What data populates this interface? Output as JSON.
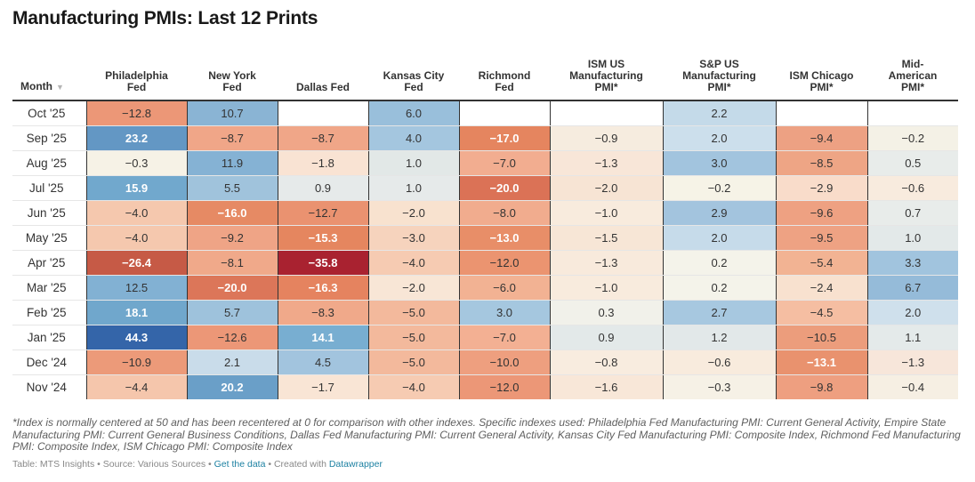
{
  "title": "Manufacturing PMIs: Last 12 Prints",
  "table": {
    "month_header": "Month",
    "sort_icon": "sort-desc-triangle",
    "columns": [
      {
        "label_lines": [
          "Philadelphia",
          "Fed"
        ]
      },
      {
        "label_lines": [
          "New York",
          "Fed"
        ]
      },
      {
        "label_lines": [
          "Dallas Fed"
        ]
      },
      {
        "label_lines": [
          "Kansas City",
          "Fed"
        ]
      },
      {
        "label_lines": [
          "Richmond",
          "Fed"
        ]
      },
      {
        "label_lines": [
          "ISM US",
          "Manufacturing",
          "PMI*"
        ]
      },
      {
        "label_lines": [
          "S&P US",
          "Manufacturing",
          "PMI*"
        ]
      },
      {
        "label_lines": [
          "ISM Chicago",
          "PMI*"
        ]
      },
      {
        "label_lines": [
          "Mid-",
          "American",
          "PMI*"
        ]
      }
    ]
  },
  "chart_data": {
    "type": "heatmap",
    "title": "Manufacturing PMIs: Last 12 Prints",
    "categories": [
      "Oct '25",
      "Sep '25",
      "Aug '25",
      "Jul '25",
      "Jun '25",
      "May '25",
      "Apr '25",
      "Mar '25",
      "Feb '25",
      "Jan '25",
      "Dec '24",
      "Nov '24"
    ],
    "series": [
      {
        "name": "Philadelphia Fed",
        "values": [
          -12.8,
          23.2,
          -0.3,
          15.9,
          -4.0,
          -4.0,
          -26.4,
          12.5,
          18.1,
          44.3,
          -10.9,
          -4.4
        ]
      },
      {
        "name": "New York Fed",
        "values": [
          10.7,
          -8.7,
          11.9,
          5.5,
          -16.0,
          -9.2,
          -8.1,
          -20.0,
          5.7,
          -12.6,
          2.1,
          20.2
        ]
      },
      {
        "name": "Dallas Fed",
        "values": [
          null,
          -8.7,
          -1.8,
          0.9,
          -12.7,
          -15.3,
          -35.8,
          -16.3,
          -8.3,
          14.1,
          4.5,
          -1.7
        ]
      },
      {
        "name": "Kansas City Fed",
        "values": [
          6.0,
          4.0,
          1.0,
          1.0,
          -2.0,
          -3.0,
          -4.0,
          -2.0,
          -5.0,
          -5.0,
          -5.0,
          -4.0
        ]
      },
      {
        "name": "Richmond Fed",
        "values": [
          null,
          -17.0,
          -7.0,
          -20.0,
          -8.0,
          -13.0,
          -12.0,
          -6.0,
          3.0,
          -7.0,
          -10.0,
          -12.0
        ]
      },
      {
        "name": "ISM US Manufacturing PMI*",
        "values": [
          null,
          -0.9,
          -1.3,
          -2.0,
          -1.0,
          -1.5,
          -1.3,
          -1.0,
          0.3,
          0.9,
          -0.8,
          -1.6
        ]
      },
      {
        "name": "S&P US Manufacturing PMI*",
        "values": [
          2.2,
          2.0,
          3.0,
          -0.2,
          2.9,
          2.0,
          0.2,
          0.2,
          2.7,
          1.2,
          -0.6,
          -0.3
        ]
      },
      {
        "name": "ISM Chicago PMI*",
        "values": [
          null,
          -9.4,
          -8.5,
          -2.9,
          -9.6,
          -9.5,
          -5.4,
          -2.4,
          -4.5,
          -10.5,
          -13.1,
          -9.8
        ]
      },
      {
        "name": "Mid-American PMI*",
        "values": [
          null,
          -0.2,
          0.5,
          -0.6,
          0.7,
          1.0,
          3.3,
          6.7,
          2.0,
          1.1,
          -1.3,
          -0.4
        ]
      }
    ],
    "cell_colors": [
      [
        "#ec9777",
        "#8ab4d4",
        null,
        "#99bfdb",
        null,
        null,
        "#c4dae9",
        null,
        null
      ],
      [
        "#6397c4",
        "#f0a688",
        "#f0a688",
        "#a4c6df",
        "#e5855f",
        "#f6ecdf",
        "#ccdfec",
        "#eda183",
        "#f4f1e6"
      ],
      [
        "#f6f2e6",
        "#85b2d4",
        "#f9e3d3",
        "#e2e8e7",
        "#f2ad90",
        "#f8e6d8",
        "#a2c4de",
        "#eea585",
        "#e8ecea"
      ],
      [
        "#71a8cd",
        "#a0c3dc",
        "#e6eaea",
        "#e6eaea",
        "#db7256",
        "#f7e4d4",
        "#f6f3e7",
        "#f9dcca",
        "#f8ebde"
      ],
      [
        "#f5c8ae",
        "#e68a64",
        "#ea9270",
        "#f8e2cf",
        "#f1ac8e",
        "#f8ebdd",
        "#a3c4de",
        "#eea182",
        "#e8ecea"
      ],
      [
        "#f5c8ae",
        "#efa486",
        "#e5865f",
        "#f6d3bd",
        "#e88e68",
        "#f7e6d6",
        "#c6dbea",
        "#eea283",
        "#e3e9e9"
      ],
      [
        "#c65a46",
        "#f0a98a",
        "#a92230",
        "#f6cbb2",
        "#eb9470",
        "#f8eadc",
        "#f4f3ea",
        "#f2b393",
        "#a1c4de"
      ],
      [
        "#82b1d3",
        "#dc7659",
        "#e5835f",
        "#f8e6d6",
        "#f2b293",
        "#f8ebdd",
        "#f4f3ea",
        "#f8e1cf",
        "#95bbd9"
      ],
      [
        "#70a7cc",
        "#9ec2dc",
        "#f0a98a",
        "#f3b99c",
        "#a5c7df",
        "#f1f1ea",
        "#a7c8e0",
        "#f5bea2",
        "#cfe0ec"
      ],
      [
        "#3465a9",
        "#ec9777",
        "#78aed1",
        "#f3b99c",
        "#f3b093",
        "#e3e9e9",
        "#e2e8e9",
        "#ec9d7c",
        "#e4eaea"
      ],
      [
        "#ec9a79",
        "#c9dcea",
        "#a2c4de",
        "#f3b99c",
        "#ee9f7f",
        "#f8ecdf",
        "#f8ebdd",
        "#e9926e",
        "#f7e6da"
      ],
      [
        "#f5c6ac",
        "#6a9fc8",
        "#f9e5d5",
        "#f6cbb2",
        "#ec9777",
        "#f8e7d8",
        "#f6f1e6",
        "#ee9f80",
        "#f6efe3"
      ]
    ],
    "light_text_threshold": 13.0
  },
  "notes": "*Index is normally centered at 50 and has been recentered at 0 for comparison with other indexes. Specific indexes used: Philadelphia Fed Manufacturing PMI: Current General Activity, Empire State Manufacturing PMI: Current General Business Conditions, Dallas Fed Manufacturing PMI: Current General Activity, Kansas City Fed Manufacturing PMI: Composite Index, Richmond Fed Manufacturing PMI: Composite Index, ISM Chicago PMI: Composite Index",
  "byline": {
    "table_credit": "Table: MTS Insights",
    "source": "Source: Various Sources",
    "get_data_link": "Get the data",
    "created_with": "Created with",
    "tool_link": "Datawrapper",
    "separator": "•"
  }
}
